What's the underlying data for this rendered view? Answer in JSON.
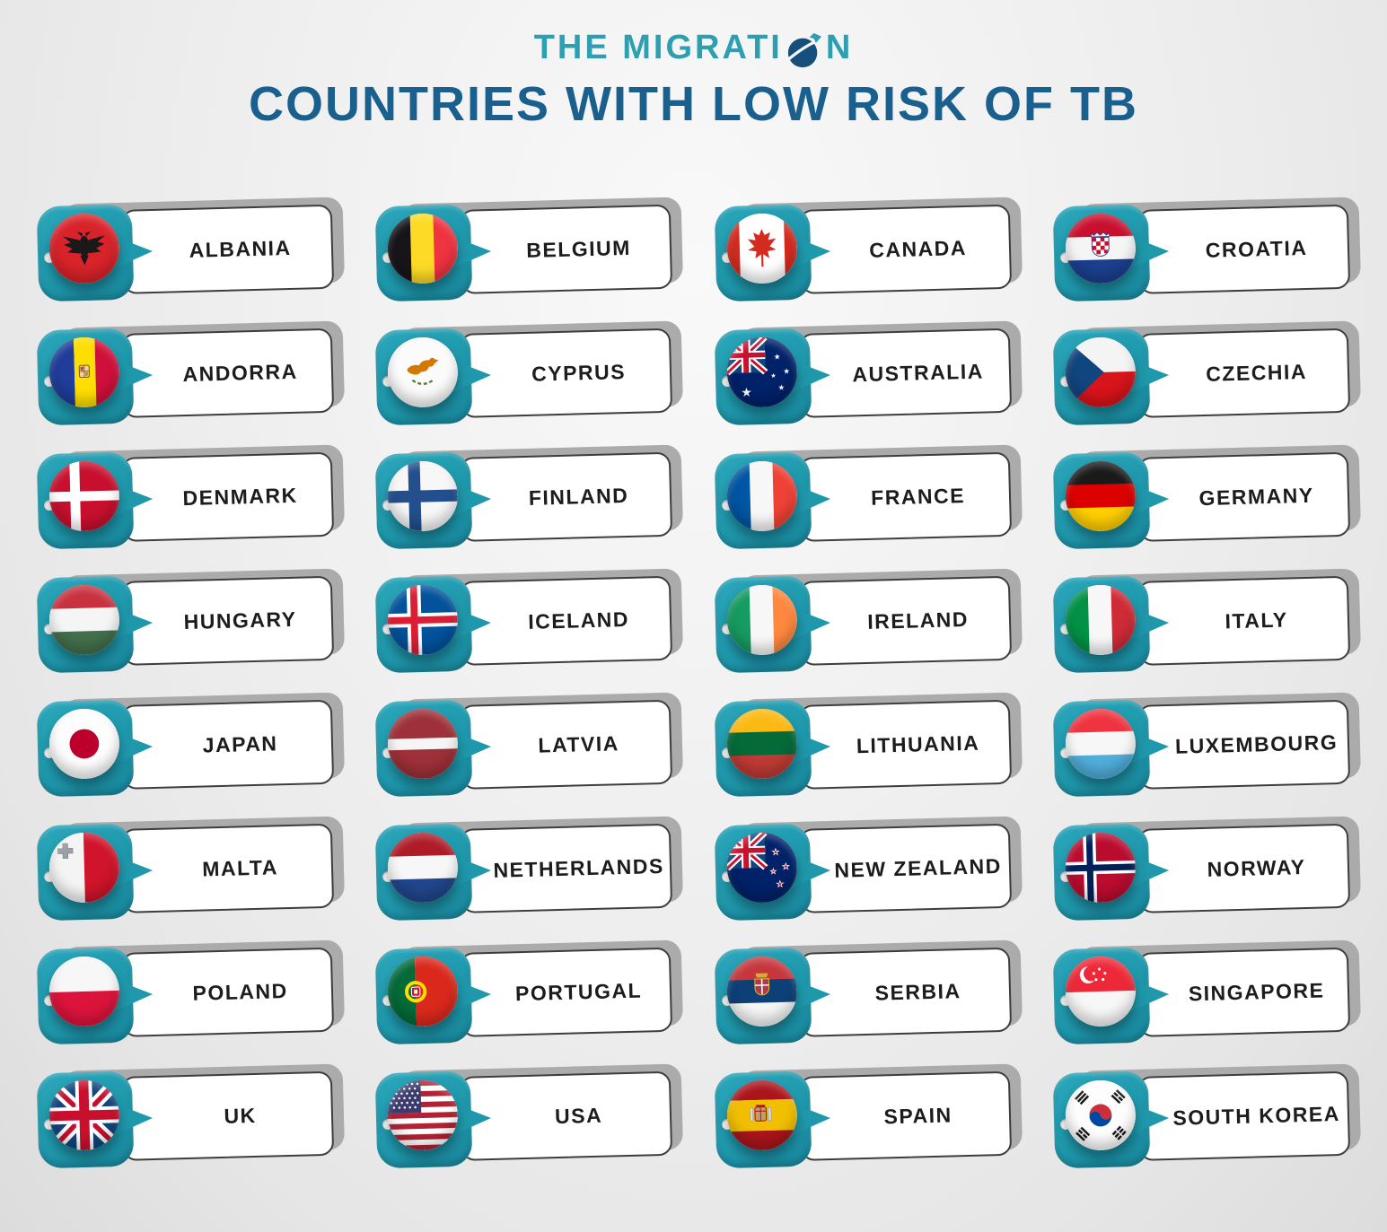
{
  "header": {
    "brand_pre": "THE MIGRATI",
    "brand_post": "N",
    "title": "COUNTRIES WITH LOW RISK OF TB"
  },
  "colors": {
    "brand_teal": "#2d9fb0",
    "title_blue": "#1a608f",
    "tile_teal": "#1f98ac",
    "label_border": "#3d3d3d",
    "card_shadow": "#ababab",
    "text_ink": "#1c1c1c",
    "background": "#ededed"
  },
  "countries": [
    {
      "name": "ALBANIA",
      "flag": "albania"
    },
    {
      "name": "BELGIUM",
      "flag": "belgium"
    },
    {
      "name": "CANADA",
      "flag": "canada"
    },
    {
      "name": "CROATIA",
      "flag": "croatia"
    },
    {
      "name": "ANDORRA",
      "flag": "andorra"
    },
    {
      "name": "CYPRUS",
      "flag": "cyprus"
    },
    {
      "name": "AUSTRALIA",
      "flag": "australia"
    },
    {
      "name": "CZECHIA",
      "flag": "czechia"
    },
    {
      "name": "DENMARK",
      "flag": "denmark"
    },
    {
      "name": "FINLAND",
      "flag": "finland"
    },
    {
      "name": "FRANCE",
      "flag": "france"
    },
    {
      "name": "GERMANY",
      "flag": "germany"
    },
    {
      "name": "HUNGARY",
      "flag": "hungary"
    },
    {
      "name": "ICELAND",
      "flag": "iceland"
    },
    {
      "name": "IRELAND",
      "flag": "ireland"
    },
    {
      "name": "ITALY",
      "flag": "italy"
    },
    {
      "name": "JAPAN",
      "flag": "japan"
    },
    {
      "name": "LATVIA",
      "flag": "latvia"
    },
    {
      "name": "LITHUANIA",
      "flag": "lithuania"
    },
    {
      "name": "LUXEMBOURG",
      "flag": "luxembourg"
    },
    {
      "name": "MALTA",
      "flag": "malta"
    },
    {
      "name": "NETHERLANDS",
      "flag": "netherlands"
    },
    {
      "name": "NEW ZEALAND",
      "flag": "new-zealand"
    },
    {
      "name": "NORWAY",
      "flag": "norway"
    },
    {
      "name": "POLAND",
      "flag": "poland"
    },
    {
      "name": "PORTUGAL",
      "flag": "portugal"
    },
    {
      "name": "SERBIA",
      "flag": "serbia"
    },
    {
      "name": "SINGAPORE",
      "flag": "singapore"
    },
    {
      "name": "UK",
      "flag": "uk"
    },
    {
      "name": "USA",
      "flag": "usa"
    },
    {
      "name": "SPAIN",
      "flag": "spain"
    },
    {
      "name": "SOUTH KOREA",
      "flag": "south-korea"
    }
  ]
}
